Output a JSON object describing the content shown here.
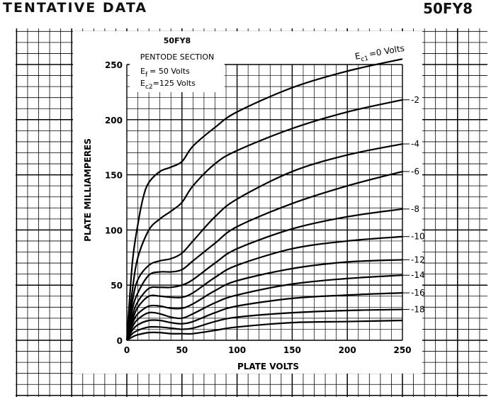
{
  "header": {
    "title_left": "TENTATIVE DATA",
    "title_right": "50FY8"
  },
  "chart_data": {
    "type": "line",
    "xlabel": "PLATE VOLTS",
    "ylabel": "PLATE MILLIAMPERES",
    "xlim": [
      0,
      250
    ],
    "ylim": [
      0,
      250
    ],
    "x_ticks": [
      0,
      50,
      100,
      150,
      200,
      250
    ],
    "y_ticks": [
      0,
      50,
      100,
      150,
      200,
      250
    ],
    "grid": true,
    "legend": {
      "tube": "50FY8",
      "section": "PENTODE SECTION",
      "ef_sym": "E",
      "ef_sub": "f",
      "ef_val": "= 50 Volts",
      "ec2_sym": "E",
      "ec2_sub": "c2",
      "ec2_val": "=125 Volts"
    },
    "top_label": {
      "sym": "E",
      "sub": "c1",
      "val": "=0 Volts"
    },
    "series": [
      {
        "name": "0",
        "x": [
          0,
          5,
          10,
          15,
          20,
          30,
          40,
          50,
          60,
          80,
          100,
          150,
          200,
          250
        ],
        "y": [
          0,
          70,
          105,
          130,
          143,
          153,
          157,
          162,
          176,
          193,
          207,
          229,
          244,
          255
        ]
      },
      {
        "name": "-2",
        "x": [
          0,
          5,
          10,
          20,
          30,
          40,
          50,
          60,
          80,
          100,
          150,
          200,
          250
        ],
        "y": [
          0,
          45,
          75,
          100,
          110,
          117,
          125,
          140,
          160,
          172,
          192,
          207,
          218
        ]
      },
      {
        "name": "-4",
        "x": [
          0,
          5,
          10,
          20,
          30,
          40,
          50,
          60,
          80,
          100,
          150,
          200,
          250
        ],
        "y": [
          0,
          35,
          55,
          68,
          72,
          74,
          79,
          90,
          112,
          128,
          153,
          168,
          178
        ]
      },
      {
        "name": "-6",
        "x": [
          0,
          5,
          10,
          20,
          30,
          40,
          50,
          60,
          80,
          100,
          150,
          200,
          250
        ],
        "y": [
          0,
          28,
          43,
          59,
          62,
          62,
          64,
          72,
          88,
          103,
          124,
          140,
          153
        ]
      },
      {
        "name": "-8",
        "x": [
          0,
          5,
          10,
          20,
          30,
          40,
          50,
          60,
          80,
          100,
          150,
          200,
          250
        ],
        "y": [
          0,
          22,
          35,
          47,
          48,
          48,
          50,
          55,
          70,
          83,
          101,
          112,
          119
        ]
      },
      {
        "name": "-10",
        "x": [
          0,
          5,
          10,
          20,
          30,
          40,
          50,
          60,
          80,
          100,
          150,
          200,
          250
        ],
        "y": [
          0,
          18,
          30,
          40,
          40,
          39,
          39,
          43,
          57,
          68,
          83,
          90,
          94
        ]
      },
      {
        "name": "-12",
        "x": [
          0,
          5,
          10,
          20,
          30,
          40,
          50,
          60,
          80,
          100,
          150,
          200,
          250
        ],
        "y": [
          0,
          15,
          24,
          31,
          31,
          29,
          29,
          33,
          45,
          54,
          65,
          71,
          73
        ]
      },
      {
        "name": "-14",
        "x": [
          0,
          5,
          10,
          20,
          30,
          40,
          50,
          60,
          80,
          100,
          150,
          200,
          250
        ],
        "y": [
          0,
          12,
          19,
          25,
          24,
          21,
          20,
          24,
          34,
          41,
          51,
          56,
          59
        ]
      },
      {
        "name": "-16",
        "x": [
          0,
          5,
          10,
          20,
          30,
          40,
          50,
          60,
          80,
          100,
          150,
          200,
          250
        ],
        "y": [
          0,
          9,
          14,
          18,
          18,
          16,
          15,
          17,
          25,
          31,
          38,
          41,
          43
        ]
      },
      {
        "name": "-18",
        "x": [
          0,
          5,
          10,
          20,
          30,
          40,
          50,
          60,
          80,
          100,
          150,
          200,
          250
        ],
        "y": [
          0,
          6,
          9,
          12,
          12,
          11,
          10,
          11,
          17,
          21,
          25,
          27,
          28
        ]
      },
      {
        "name": "",
        "x": [
          0,
          5,
          10,
          20,
          30,
          40,
          50,
          60,
          80,
          100,
          150,
          200,
          250
        ],
        "y": [
          0,
          3,
          5,
          7,
          7,
          6,
          6,
          6,
          9,
          12,
          16,
          17,
          18
        ]
      }
    ]
  }
}
